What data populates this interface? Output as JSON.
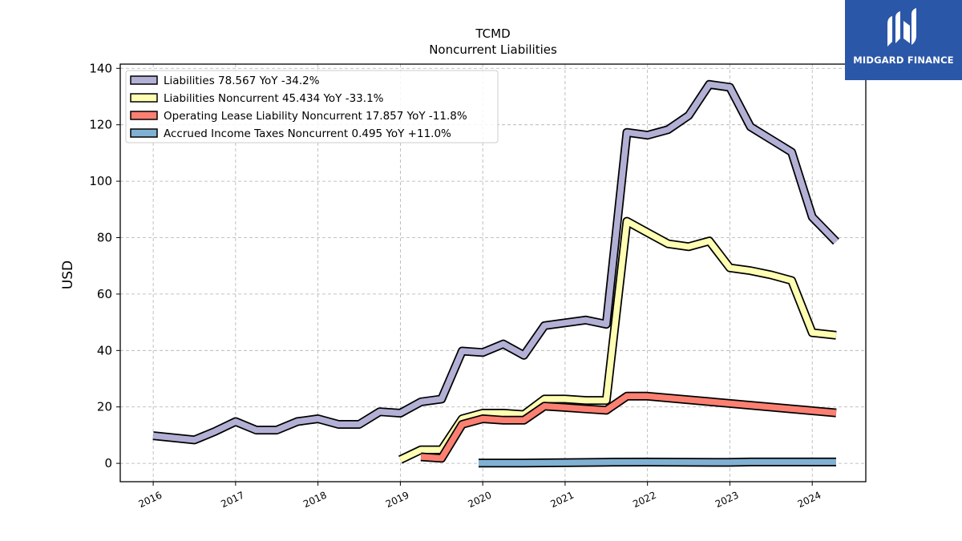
{
  "chart_data": {
    "type": "line",
    "title": "TCMD",
    "subtitle": "Noncurrent  Liabilities",
    "xlabel": "",
    "ylabel": "USD",
    "xlim": [
      2015.6,
      2024.65
    ],
    "ylim": [
      -6.5,
      141.5
    ],
    "x_ticks": [
      "2016",
      "2017",
      "2018",
      "2019",
      "2020",
      "2021",
      "2022",
      "2023",
      "2024"
    ],
    "y_ticks": [
      "0",
      "20",
      "40",
      "60",
      "80",
      "100",
      "120",
      "140"
    ],
    "grid": true,
    "legend_position": "top-left",
    "series": [
      {
        "name": "Liabilities  78.567 YoY -34.2%",
        "color": "#b3b0d6",
        "x": [
          2016.0,
          2016.5,
          2016.75,
          2017.0,
          2017.25,
          2017.5,
          2017.75,
          2018.0,
          2018.25,
          2018.5,
          2018.75,
          2019.0,
          2019.25,
          2019.5,
          2019.75,
          2020.0,
          2020.25,
          2020.5,
          2020.75,
          2021.0,
          2021.25,
          2021.5,
          2021.75,
          2022.0,
          2022.25,
          2022.5,
          2022.75,
          2023.0,
          2023.25,
          2023.5,
          2023.75,
          2024.0,
          2024.29
        ],
        "y": [
          9.8,
          8.3,
          11.3,
          14.8,
          11.8,
          11.8,
          14.8,
          15.8,
          13.8,
          13.8,
          18.3,
          17.8,
          21.8,
          22.8,
          39.8,
          39.3,
          42.3,
          38.3,
          48.8,
          49.8,
          50.8,
          49.3,
          117.3,
          116.3,
          118.3,
          123.3,
          134.3,
          133.3,
          119.3,
          114.8,
          110.3,
          87.3,
          78.6
        ]
      },
      {
        "name": "Liabilities Noncurrent  45.434 YoY -33.1%",
        "color": "#ffffb3",
        "x": [
          2019.0,
          2019.25,
          2019.5,
          2019.75,
          2020.0,
          2020.25,
          2020.5,
          2020.75,
          2021.0,
          2021.25,
          2021.5,
          2021.75,
          2022.0,
          2022.25,
          2022.5,
          2022.75,
          2023.0,
          2023.25,
          2023.5,
          2023.75,
          2024.0,
          2024.29
        ],
        "y": [
          1.3,
          4.8,
          4.8,
          15.8,
          17.8,
          17.8,
          17.3,
          22.8,
          22.8,
          22.3,
          22.3,
          85.8,
          81.8,
          77.8,
          76.8,
          78.8,
          69.3,
          68.3,
          66.8,
          64.8,
          46.3,
          45.4
        ]
      },
      {
        "name": "Operating Lease Liability Noncurrent  17.857 YoY -11.8%",
        "color": "#fb8072",
        "x": [
          2019.25,
          2019.5,
          2019.75,
          2020.0,
          2020.25,
          2020.5,
          2020.75,
          2021.0,
          2021.25,
          2021.5,
          2021.75,
          2022.0,
          2024.29
        ],
        "y": [
          2.3,
          1.8,
          13.8,
          15.8,
          15.3,
          15.3,
          20.3,
          19.8,
          19.3,
          18.8,
          23.8,
          23.8,
          17.9
        ]
      },
      {
        "name": "Accrued Income Taxes Noncurrent  0.495 YoY +11.0%",
        "color": "#80b1d3",
        "x": [
          2019.95,
          2020.5,
          2021.5,
          2022.0,
          2022.5,
          2023.0,
          2023.25,
          2023.5,
          2024.0,
          2024.29
        ],
        "y": [
          0.1,
          0.1,
          0.4,
          0.45,
          0.4,
          0.35,
          0.5,
          0.5,
          0.5,
          0.5
        ]
      }
    ]
  },
  "logo": {
    "text": "MIDGARD FINANCE",
    "bg_color": "#2b57a8"
  }
}
